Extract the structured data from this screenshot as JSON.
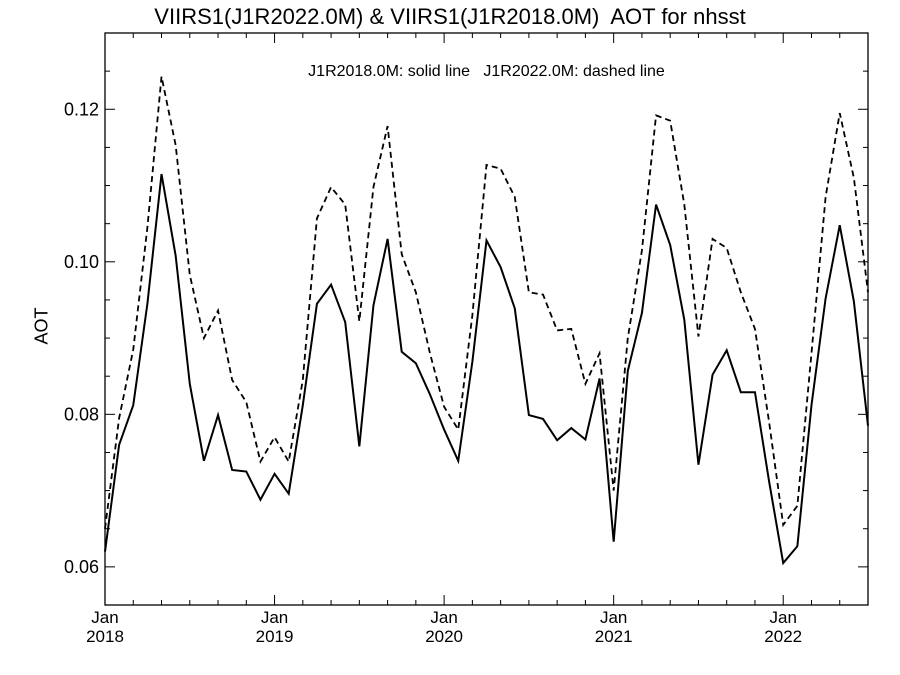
{
  "chart_data": {
    "type": "line",
    "title": "VIIRS1(J1R2022.0M) & VIIRS1(J1R2018.0M)  AOT for nhsst",
    "annotation": "J1R2018.0M: solid line   J1R2022.0M: dashed line",
    "xlabel": "",
    "ylabel": "AOT",
    "xlim": [
      "2018-01",
      "2022-07"
    ],
    "ylim": [
      0.055,
      0.13
    ],
    "y_ticks": [
      "0.06",
      "0.08",
      "0.10",
      "0.12"
    ],
    "y_tick_values": [
      0.06,
      0.08,
      0.1,
      0.12
    ],
    "x_tick_labels": [
      {
        "month": "Jan",
        "year": "2018",
        "date": "2018-01"
      },
      {
        "month": "Jan",
        "year": "2019",
        "date": "2019-01"
      },
      {
        "month": "Jan",
        "year": "2020",
        "date": "2020-01"
      },
      {
        "month": "Jan",
        "year": "2021",
        "date": "2021-01"
      },
      {
        "month": "Jan",
        "year": "2022",
        "date": "2022-01"
      }
    ],
    "grid": false,
    "x": [
      "2018-01",
      "2018-02",
      "2018-03",
      "2018-04",
      "2018-05",
      "2018-06",
      "2018-07",
      "2018-08",
      "2018-09",
      "2018-10",
      "2018-11",
      "2018-12",
      "2019-01",
      "2019-02",
      "2019-03",
      "2019-04",
      "2019-05",
      "2019-06",
      "2019-07",
      "2019-08",
      "2019-09",
      "2019-10",
      "2019-11",
      "2019-12",
      "2020-01",
      "2020-02",
      "2020-03",
      "2020-04",
      "2020-05",
      "2020-06",
      "2020-07",
      "2020-08",
      "2020-09",
      "2020-10",
      "2020-11",
      "2020-12",
      "2021-01",
      "2021-02",
      "2021-03",
      "2021-04",
      "2021-05",
      "2021-06",
      "2021-07",
      "2021-08",
      "2021-09",
      "2021-10",
      "2021-11",
      "2021-12",
      "2022-01",
      "2022-02",
      "2022-03",
      "2022-04",
      "2022-05",
      "2022-06",
      "2022-07"
    ],
    "series": [
      {
        "name": "J1R2018.0M",
        "style": "solid",
        "color": "#000000",
        "values": [
          0.062,
          0.076,
          0.0812,
          0.0945,
          0.1115,
          0.1008,
          0.084,
          0.0739,
          0.0799,
          0.0727,
          0.0725,
          0.0688,
          0.0722,
          0.0696,
          0.0812,
          0.0945,
          0.097,
          0.0921,
          0.0758,
          0.0943,
          0.103,
          0.0882,
          0.0867,
          0.0826,
          0.078,
          0.0739,
          0.0869,
          0.1028,
          0.0993,
          0.0939,
          0.0799,
          0.0794,
          0.0766,
          0.0782,
          0.0767,
          0.0847,
          0.0633,
          0.0857,
          0.0933,
          0.1075,
          0.1022,
          0.0924,
          0.0734,
          0.0852,
          0.0884,
          0.0829,
          0.0829,
          0.0712,
          0.0605,
          0.0627,
          0.0812,
          0.0952,
          0.1048,
          0.0948,
          0.0785
        ]
      },
      {
        "name": "J1R2022.0M",
        "style": "dashed",
        "color": "#000000",
        "values": [
          0.065,
          0.0795,
          0.0885,
          0.1045,
          0.1243,
          0.1153,
          0.0983,
          0.09,
          0.0936,
          0.0845,
          0.0816,
          0.0738,
          0.077,
          0.0738,
          0.0845,
          0.1057,
          0.1098,
          0.1075,
          0.0922,
          0.1098,
          0.1178,
          0.101,
          0.096,
          0.088,
          0.081,
          0.078,
          0.093,
          0.1127,
          0.1122,
          0.1085,
          0.096,
          0.0957,
          0.091,
          0.0912,
          0.084,
          0.088,
          0.07,
          0.09,
          0.1015,
          0.1192,
          0.1185,
          0.1075,
          0.0902,
          0.103,
          0.1018,
          0.096,
          0.0912,
          0.079,
          0.0655,
          0.068,
          0.088,
          0.1085,
          0.1195,
          0.111,
          0.096
        ]
      }
    ]
  }
}
